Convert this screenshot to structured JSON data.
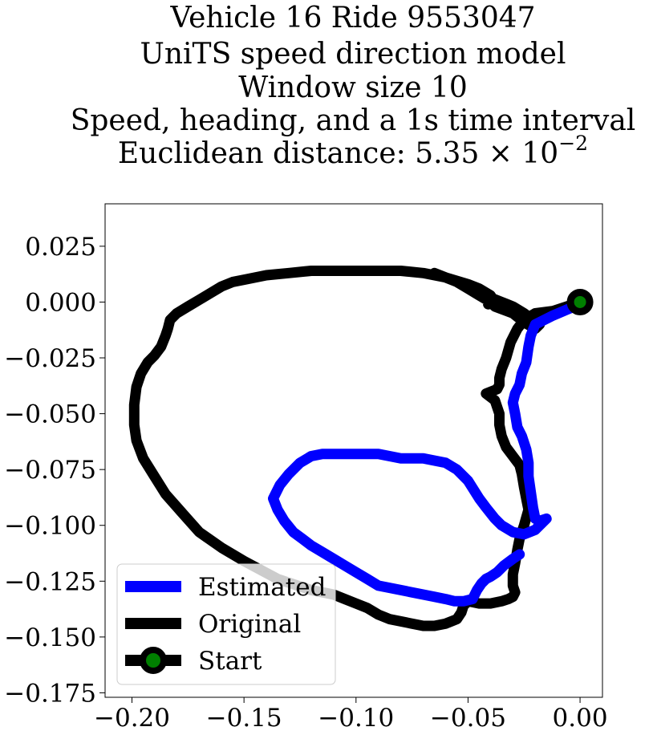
{
  "chart_data": {
    "type": "line",
    "title_lines": [
      "Vehicle 16 Ride 9553047",
      "UniTS speed direction model",
      "Window size 10",
      "Speed, heading, and a 1s time interval"
    ],
    "title_distance_prefix": "Euclidean distance: 5.35 × 10",
    "title_distance_exponent": "−2",
    "xlim": [
      -0.212,
      0.01
    ],
    "ylim": [
      -0.177,
      0.044
    ],
    "x_ticks": [
      -0.2,
      -0.15,
      -0.1,
      -0.05,
      0.0
    ],
    "x_tick_labels": [
      "−0.20",
      "−0.15",
      "−0.10",
      "−0.05",
      "0.00"
    ],
    "y_ticks": [
      0.025,
      0.0,
      -0.025,
      -0.05,
      -0.075,
      -0.1,
      -0.125,
      -0.15,
      -0.175
    ],
    "y_tick_labels": [
      "0.025",
      "0.000",
      "−0.025",
      "−0.050",
      "−0.075",
      "−0.100",
      "−0.125",
      "−0.150",
      "−0.175"
    ],
    "grid": false,
    "legend_position": "lower-left",
    "series": [
      {
        "name": "Estimated",
        "color": "#0000ff",
        "x": [
          0.0,
          -0.005,
          -0.012,
          -0.02,
          -0.022,
          -0.023,
          -0.024,
          -0.026,
          -0.027,
          -0.029,
          -0.03,
          -0.029,
          -0.028,
          -0.026,
          -0.024,
          -0.023,
          -0.023,
          -0.022,
          -0.021,
          -0.02,
          -0.018,
          -0.015,
          -0.02,
          -0.025,
          -0.03,
          -0.035,
          -0.038,
          -0.042,
          -0.045,
          -0.05,
          -0.055,
          -0.06,
          -0.065,
          -0.07,
          -0.075,
          -0.08,
          -0.085,
          -0.09,
          -0.095,
          -0.1,
          -0.105,
          -0.11,
          -0.115,
          -0.12,
          -0.125,
          -0.13,
          -0.134,
          -0.137,
          -0.135,
          -0.132,
          -0.128,
          -0.124,
          -0.12,
          -0.115,
          -0.11,
          -0.105,
          -0.1,
          -0.095,
          -0.09,
          -0.085,
          -0.08,
          -0.075,
          -0.07,
          -0.065,
          -0.06,
          -0.056,
          -0.052,
          -0.048,
          -0.046,
          -0.044,
          -0.042,
          -0.04,
          -0.037,
          -0.034,
          -0.03,
          -0.027
        ],
        "y": [
          -0.001,
          -0.003,
          -0.006,
          -0.01,
          -0.015,
          -0.02,
          -0.027,
          -0.032,
          -0.037,
          -0.041,
          -0.045,
          -0.05,
          -0.056,
          -0.06,
          -0.066,
          -0.072,
          -0.078,
          -0.085,
          -0.092,
          -0.097,
          -0.098,
          -0.097,
          -0.102,
          -0.104,
          -0.103,
          -0.1,
          -0.097,
          -0.092,
          -0.088,
          -0.08,
          -0.075,
          -0.072,
          -0.071,
          -0.07,
          -0.07,
          -0.07,
          -0.069,
          -0.068,
          -0.068,
          -0.068,
          -0.068,
          -0.068,
          -0.068,
          -0.069,
          -0.072,
          -0.077,
          -0.082,
          -0.088,
          -0.093,
          -0.098,
          -0.103,
          -0.106,
          -0.109,
          -0.112,
          -0.115,
          -0.118,
          -0.121,
          -0.124,
          -0.127,
          -0.128,
          -0.129,
          -0.13,
          -0.131,
          -0.132,
          -0.133,
          -0.134,
          -0.134,
          -0.133,
          -0.129,
          -0.126,
          -0.124,
          -0.123,
          -0.121,
          -0.118,
          -0.115,
          -0.113
        ]
      },
      {
        "name": "Original",
        "color": "#000000",
        "x": [
          0.0,
          -0.006,
          -0.012,
          -0.02,
          -0.025,
          -0.028,
          -0.031,
          -0.033,
          -0.035,
          -0.036,
          -0.036,
          -0.037,
          -0.042,
          -0.038,
          -0.036,
          -0.036,
          -0.035,
          -0.033,
          -0.03,
          -0.027,
          -0.026,
          -0.025,
          -0.024,
          -0.023,
          -0.025,
          -0.027,
          -0.028,
          -0.029,
          -0.03,
          -0.03,
          -0.029,
          -0.03,
          -0.032,
          -0.035,
          -0.04,
          -0.045,
          -0.05,
          -0.052,
          -0.053,
          -0.055,
          -0.06,
          -0.065,
          -0.07,
          -0.075,
          -0.08,
          -0.085,
          -0.09,
          -0.095,
          -0.1,
          -0.105,
          -0.11,
          -0.12,
          -0.135,
          -0.15,
          -0.16,
          -0.17,
          -0.178,
          -0.185,
          -0.19,
          -0.195,
          -0.198,
          -0.199,
          -0.199,
          -0.198,
          -0.196,
          -0.193,
          -0.19,
          -0.187,
          -0.185,
          -0.184,
          -0.183,
          -0.18,
          -0.175,
          -0.17,
          -0.165,
          -0.16,
          -0.155,
          -0.15,
          -0.14,
          -0.13,
          -0.12,
          -0.11,
          -0.1,
          -0.09,
          -0.08,
          -0.07,
          -0.06,
          -0.05,
          -0.045,
          -0.04,
          -0.038,
          -0.041,
          -0.04,
          -0.035,
          -0.03,
          -0.025,
          -0.021,
          -0.018,
          -0.02,
          -0.025,
          -0.03,
          -0.038,
          -0.04,
          -0.045,
          -0.05,
          -0.055,
          -0.06,
          -0.065
        ],
        "y": [
          0.0,
          -0.002,
          -0.004,
          -0.005,
          -0.008,
          -0.012,
          -0.018,
          -0.025,
          -0.03,
          -0.034,
          -0.037,
          -0.039,
          -0.041,
          -0.044,
          -0.05,
          -0.055,
          -0.06,
          -0.065,
          -0.069,
          -0.073,
          -0.077,
          -0.083,
          -0.088,
          -0.093,
          -0.1,
          -0.106,
          -0.111,
          -0.117,
          -0.122,
          -0.127,
          -0.13,
          -0.132,
          -0.133,
          -0.134,
          -0.135,
          -0.135,
          -0.134,
          -0.136,
          -0.139,
          -0.142,
          -0.144,
          -0.145,
          -0.145,
          -0.144,
          -0.143,
          -0.142,
          -0.14,
          -0.137,
          -0.135,
          -0.133,
          -0.131,
          -0.129,
          -0.124,
          -0.116,
          -0.11,
          -0.103,
          -0.094,
          -0.086,
          -0.078,
          -0.07,
          -0.062,
          -0.055,
          -0.046,
          -0.038,
          -0.032,
          -0.027,
          -0.024,
          -0.02,
          -0.015,
          -0.012,
          -0.008,
          -0.005,
          -0.002,
          0.001,
          0.004,
          0.007,
          0.009,
          0.01,
          0.012,
          0.013,
          0.014,
          0.014,
          0.014,
          0.014,
          0.014,
          0.013,
          0.011,
          0.008,
          0.006,
          0.003,
          0.0,
          -0.001,
          0.002,
          0.0,
          -0.002,
          -0.005,
          -0.008,
          -0.01,
          -0.012,
          -0.009,
          -0.005,
          -0.002,
          0.0,
          0.003,
          0.006,
          0.009,
          0.011,
          0.013
        ]
      },
      {
        "name": "Start",
        "color": "#000000",
        "marker_fill": "#008000",
        "x": [
          0.0
        ],
        "y": [
          0.0
        ]
      }
    ]
  }
}
